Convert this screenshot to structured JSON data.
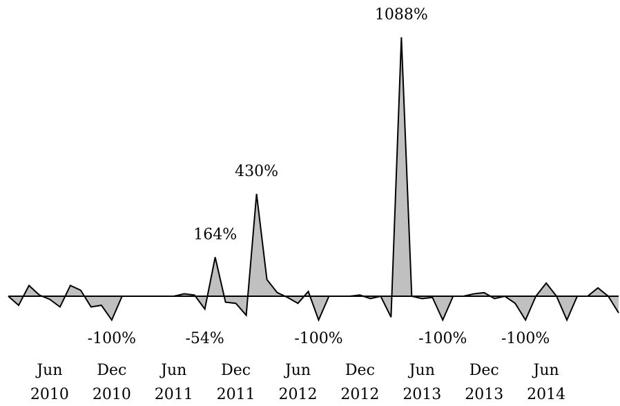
{
  "chart_data": {
    "type": "area",
    "title": "",
    "xlabel": "",
    "ylabel": "",
    "ylim": [
      -110,
      1100
    ],
    "grid": false,
    "fill_color": "#c0c0c0",
    "line_color": "#000000",
    "x_ticks": [
      {
        "month": "Jun",
        "year": "2010",
        "index": 4
      },
      {
        "month": "Dec",
        "year": "2010",
        "index": 10
      },
      {
        "month": "Jun",
        "year": "2011",
        "index": 16
      },
      {
        "month": "Dec",
        "year": "2011",
        "index": 22
      },
      {
        "month": "Jun",
        "year": "2012",
        "index": 28
      },
      {
        "month": "Dec",
        "year": "2012",
        "index": 34
      },
      {
        "month": "Jun",
        "year": "2013",
        "index": 40
      },
      {
        "month": "Dec",
        "year": "2013",
        "index": 46
      },
      {
        "month": "Jun",
        "year": "2014",
        "index": 52
      }
    ],
    "series": [
      {
        "values": [
          0,
          -38,
          45,
          5,
          -13,
          -45,
          45,
          25,
          -45,
          -38,
          -100,
          0,
          0,
          0,
          0,
          0,
          0,
          10,
          5,
          -54,
          164,
          -25,
          -30,
          -80,
          430,
          70,
          15,
          -5,
          -30,
          20,
          -100,
          0,
          0,
          0,
          5,
          -10,
          0,
          -88,
          1088,
          0,
          -10,
          -5,
          -100,
          0,
          0,
          10,
          15,
          -10,
          0,
          -30,
          -100,
          0,
          55,
          0,
          -100,
          0,
          0,
          35,
          0,
          -70
        ]
      }
    ],
    "annotations": [
      {
        "index": 10,
        "value": -100,
        "text": "-100%",
        "pos": "below"
      },
      {
        "index": 19,
        "value": -54,
        "text": "-54%",
        "pos": "below"
      },
      {
        "index": 20,
        "value": 164,
        "text": "164%",
        "pos": "above"
      },
      {
        "index": 24,
        "value": 430,
        "text": "430%",
        "pos": "above"
      },
      {
        "index": 30,
        "value": -100,
        "text": "-100%",
        "pos": "below"
      },
      {
        "index": 38,
        "value": 1088,
        "text": "1088%",
        "pos": "above"
      },
      {
        "index": 42,
        "value": -100,
        "text": "-100%",
        "pos": "below"
      },
      {
        "index": 50,
        "value": -100,
        "text": "-100%",
        "pos": "below"
      }
    ]
  }
}
